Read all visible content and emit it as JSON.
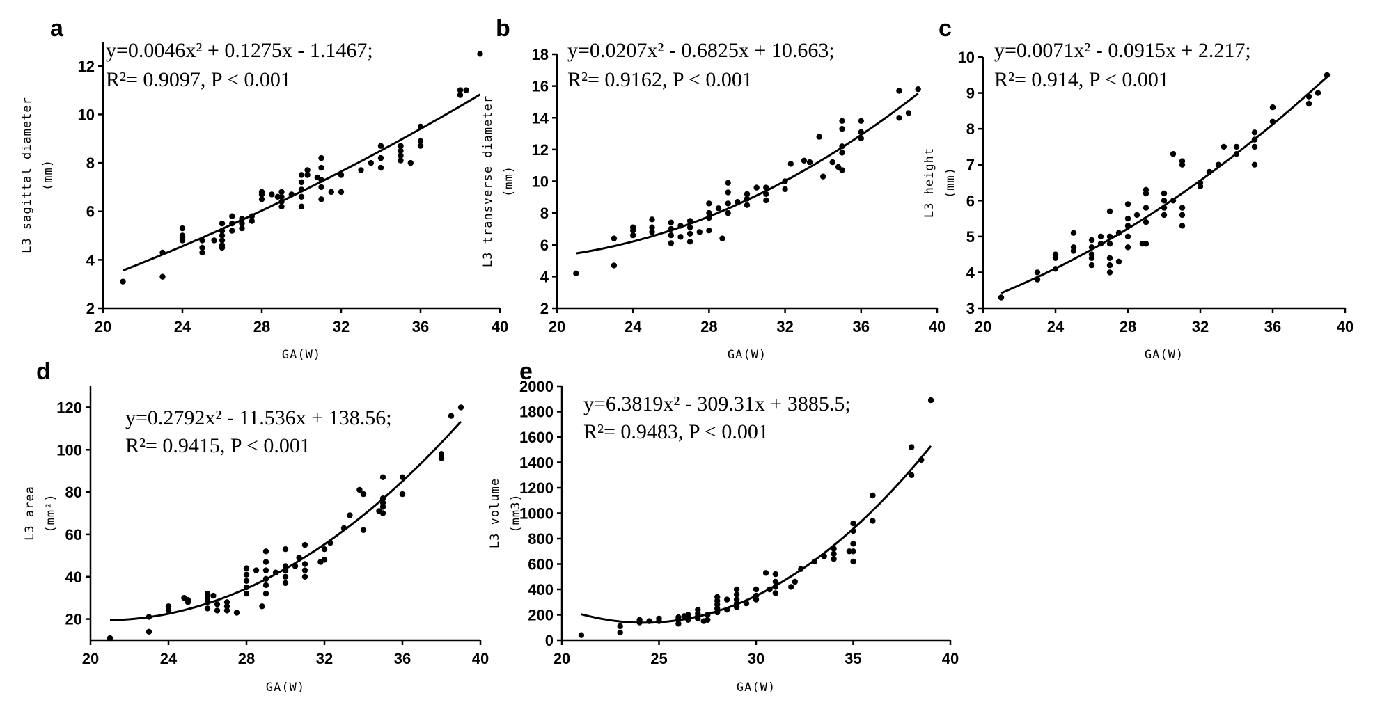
{
  "figure": {
    "panels": [
      "a",
      "b",
      "c",
      "d",
      "e"
    ]
  },
  "chart_data": [
    {
      "id": "a",
      "type": "scatter",
      "letter": "a",
      "xlabel": "GA(W)",
      "ylabel": "L3 sagittal diameter",
      "ylabel_unit": "(mm)",
      "xlim": [
        20,
        40
      ],
      "ylim": [
        2,
        13
      ],
      "xticks": [
        20,
        24,
        28,
        32,
        36,
        40
      ],
      "yticks": [
        2,
        4,
        6,
        8,
        10,
        12
      ],
      "equation": "y=0.0046x² + 0.1275x - 1.1467;",
      "stats": "R²= 0.9097,   P < 0.001",
      "fit": {
        "a": 0.0046,
        "b": 0.1275,
        "c": -1.1467,
        "x_from": 21,
        "x_to": 39
      },
      "points": [
        [
          21,
          3.1
        ],
        [
          23,
          4.3
        ],
        [
          23,
          3.3
        ],
        [
          24,
          5.3
        ],
        [
          24,
          5.0
        ],
        [
          24,
          4.9
        ],
        [
          24,
          4.8
        ],
        [
          25,
          4.8
        ],
        [
          25,
          4.5
        ],
        [
          25,
          4.3
        ],
        [
          25.6,
          4.8
        ],
        [
          26,
          5.5
        ],
        [
          26,
          5.2
        ],
        [
          26,
          5.0
        ],
        [
          26,
          4.8
        ],
        [
          26,
          4.6
        ],
        [
          26,
          4.5
        ],
        [
          26.5,
          5.8
        ],
        [
          26.5,
          5.5
        ],
        [
          26.5,
          5.2
        ],
        [
          27,
          5.7
        ],
        [
          27,
          5.5
        ],
        [
          27,
          5.3
        ],
        [
          27.5,
          5.8
        ],
        [
          27.5,
          5.6
        ],
        [
          28,
          6.8
        ],
        [
          28,
          6.7
        ],
        [
          28,
          6.5
        ],
        [
          28.5,
          6.7
        ],
        [
          28.8,
          6.6
        ],
        [
          29,
          6.8
        ],
        [
          29,
          6.6
        ],
        [
          29,
          6.4
        ],
        [
          29,
          6.2
        ],
        [
          29.5,
          6.7
        ],
        [
          30,
          7.5
        ],
        [
          30,
          7.2
        ],
        [
          30,
          6.9
        ],
        [
          30,
          6.6
        ],
        [
          30,
          6.2
        ],
        [
          30.3,
          7.7
        ],
        [
          30.3,
          7.5
        ],
        [
          30.8,
          7.4
        ],
        [
          31,
          8.2
        ],
        [
          31,
          7.8
        ],
        [
          31,
          7.3
        ],
        [
          31,
          7.0
        ],
        [
          31,
          6.5
        ],
        [
          31.5,
          6.8
        ],
        [
          32,
          7.5
        ],
        [
          32,
          6.8
        ],
        [
          33,
          7.7
        ],
        [
          33.5,
          8.0
        ],
        [
          34,
          8.7
        ],
        [
          34,
          8.2
        ],
        [
          34,
          7.8
        ],
        [
          35,
          8.7
        ],
        [
          35,
          8.5
        ],
        [
          35,
          8.3
        ],
        [
          35,
          8.1
        ],
        [
          35.5,
          8.0
        ],
        [
          36,
          9.5
        ],
        [
          36,
          8.9
        ],
        [
          36,
          8.7
        ],
        [
          38,
          11.0
        ],
        [
          38,
          10.8
        ],
        [
          38.3,
          11.0
        ],
        [
          39,
          12.5
        ]
      ]
    },
    {
      "id": "b",
      "type": "scatter",
      "letter": "b",
      "xlabel": "GA(W)",
      "ylabel": "L3 transverse diameter",
      "ylabel_unit": "(mm)",
      "xlim": [
        20,
        40
      ],
      "ylim": [
        2,
        18
      ],
      "xticks": [
        20,
        24,
        28,
        32,
        36,
        40
      ],
      "yticks": [
        2,
        4,
        6,
        8,
        10,
        12,
        14,
        16,
        18
      ],
      "equation": "y=0.0207x² - 0.6825x + 10.663;",
      "stats": "R²= 0.9162,   P < 0.001",
      "fit": {
        "a": 0.0207,
        "b": -0.6825,
        "c": 10.663,
        "x_from": 21,
        "x_to": 39
      },
      "points": [
        [
          21,
          4.2
        ],
        [
          23,
          6.4
        ],
        [
          23,
          4.7
        ],
        [
          24,
          7.1
        ],
        [
          24,
          6.9
        ],
        [
          24,
          6.6
        ],
        [
          25,
          7.6
        ],
        [
          25,
          7.1
        ],
        [
          25,
          6.8
        ],
        [
          26,
          7.4
        ],
        [
          26,
          7.0
        ],
        [
          26,
          6.6
        ],
        [
          26,
          6.1
        ],
        [
          26.5,
          7.2
        ],
        [
          26.5,
          6.5
        ],
        [
          27,
          7.5
        ],
        [
          27,
          7.1
        ],
        [
          27,
          6.7
        ],
        [
          27,
          6.2
        ],
        [
          27.5,
          6.8
        ],
        [
          28,
          8.6
        ],
        [
          28,
          8.0
        ],
        [
          28,
          7.7
        ],
        [
          28,
          6.9
        ],
        [
          28.5,
          8.3
        ],
        [
          28.7,
          6.4
        ],
        [
          29,
          9.9
        ],
        [
          29,
          9.3
        ],
        [
          29,
          8.6
        ],
        [
          29,
          8.0
        ],
        [
          29.5,
          8.7
        ],
        [
          30,
          9.2
        ],
        [
          30,
          8.9
        ],
        [
          30,
          8.5
        ],
        [
          30.5,
          9.6
        ],
        [
          31,
          9.6
        ],
        [
          31,
          9.2
        ],
        [
          31,
          8.8
        ],
        [
          32,
          10.0
        ],
        [
          32,
          9.5
        ],
        [
          32.3,
          11.1
        ],
        [
          33,
          11.3
        ],
        [
          33.3,
          11.2
        ],
        [
          33.8,
          12.8
        ],
        [
          34,
          10.3
        ],
        [
          34.5,
          11.2
        ],
        [
          34.8,
          10.9
        ],
        [
          35,
          13.8
        ],
        [
          35,
          13.3
        ],
        [
          35,
          12.2
        ],
        [
          35,
          11.8
        ],
        [
          35,
          10.7
        ],
        [
          36,
          13.8
        ],
        [
          36,
          13.1
        ],
        [
          36,
          12.7
        ],
        [
          38,
          15.7
        ],
        [
          38,
          14.0
        ],
        [
          38.5,
          14.3
        ],
        [
          39,
          15.8
        ]
      ]
    },
    {
      "id": "c",
      "type": "scatter",
      "letter": "c",
      "xlabel": "GA(W)",
      "ylabel": "L3 height",
      "ylabel_unit": "(mm)",
      "xlim": [
        20,
        40
      ],
      "ylim": [
        3,
        10
      ],
      "xticks": [
        20,
        24,
        28,
        32,
        36,
        40
      ],
      "yticks": [
        3,
        4,
        5,
        6,
        7,
        8,
        9,
        10
      ],
      "equation": "y=0.0071x² - 0.0915x + 2.217;",
      "stats": "R²= 0.914,   P < 0.001",
      "fit": {
        "a": 0.0071,
        "b": -0.0915,
        "c": 2.217,
        "x_from": 21,
        "x_to": 39
      },
      "points": [
        [
          21,
          3.3
        ],
        [
          23,
          4.0
        ],
        [
          23,
          3.8
        ],
        [
          24,
          4.4
        ],
        [
          24,
          4.1
        ],
        [
          24,
          4.5
        ],
        [
          25,
          5.1
        ],
        [
          25,
          4.7
        ],
        [
          25,
          4.6
        ],
        [
          26,
          4.9
        ],
        [
          26,
          4.7
        ],
        [
          26,
          4.5
        ],
        [
          26,
          4.4
        ],
        [
          26,
          4.2
        ],
        [
          26.5,
          4.8
        ],
        [
          26.5,
          5.0
        ],
        [
          27,
          5.7
        ],
        [
          27,
          5.0
        ],
        [
          27,
          4.8
        ],
        [
          27,
          4.4
        ],
        [
          27,
          4.2
        ],
        [
          27,
          4.0
        ],
        [
          27.5,
          4.3
        ],
        [
          27.5,
          5.1
        ],
        [
          28,
          5.9
        ],
        [
          28,
          5.5
        ],
        [
          28,
          5.3
        ],
        [
          28,
          5.0
        ],
        [
          28,
          4.7
        ],
        [
          28.5,
          5.6
        ],
        [
          28.8,
          4.8
        ],
        [
          29,
          6.3
        ],
        [
          29,
          6.2
        ],
        [
          29,
          5.8
        ],
        [
          29,
          5.4
        ],
        [
          29,
          4.8
        ],
        [
          30,
          6.2
        ],
        [
          30,
          6.0
        ],
        [
          30,
          5.8
        ],
        [
          30,
          5.6
        ],
        [
          30.5,
          7.3
        ],
        [
          30.5,
          6.0
        ],
        [
          31,
          7.1
        ],
        [
          31,
          7.0
        ],
        [
          31,
          5.8
        ],
        [
          31,
          5.6
        ],
        [
          31,
          5.3
        ],
        [
          32,
          6.4
        ],
        [
          32,
          6.5
        ],
        [
          32.5,
          6.8
        ],
        [
          33,
          7.0
        ],
        [
          33.3,
          7.5
        ],
        [
          34,
          7.5
        ],
        [
          34,
          7.3
        ],
        [
          35,
          7.9
        ],
        [
          35,
          7.7
        ],
        [
          35,
          7.5
        ],
        [
          35,
          7.0
        ],
        [
          36,
          8.6
        ],
        [
          36,
          8.2
        ],
        [
          38,
          8.9
        ],
        [
          38,
          8.7
        ],
        [
          38.5,
          9.0
        ],
        [
          39,
          9.5
        ]
      ]
    },
    {
      "id": "d",
      "type": "scatter",
      "letter": "d",
      "xlabel": "GA(W)",
      "ylabel": "L3 area",
      "ylabel_unit": "(mm²)",
      "xlim": [
        20,
        40
      ],
      "ylim": [
        10,
        130
      ],
      "xticks": [
        20,
        24,
        28,
        32,
        36,
        40
      ],
      "yticks": [
        20,
        40,
        60,
        80,
        100,
        120
      ],
      "equation": "y=0.2792x² - 11.536x + 138.56;",
      "stats": "R²= 0.9415,   P < 0.001",
      "fit": {
        "a": 0.2792,
        "b": -11.536,
        "c": 138.56,
        "x_from": 21,
        "x_to": 39
      },
      "points": [
        [
          21,
          11
        ],
        [
          23,
          21
        ],
        [
          23,
          14
        ],
        [
          24,
          26
        ],
        [
          24,
          24
        ],
        [
          24.8,
          30
        ],
        [
          25,
          29
        ],
        [
          25,
          28
        ],
        [
          26,
          32
        ],
        [
          26,
          30
        ],
        [
          26,
          28
        ],
        [
          26,
          25
        ],
        [
          26.3,
          31
        ],
        [
          26.5,
          27
        ],
        [
          26.5,
          24
        ],
        [
          27,
          28
        ],
        [
          27,
          26
        ],
        [
          27,
          24
        ],
        [
          27.5,
          23
        ],
        [
          28,
          44
        ],
        [
          28,
          41
        ],
        [
          28,
          38
        ],
        [
          28,
          35
        ],
        [
          28,
          32
        ],
        [
          28.5,
          43
        ],
        [
          28.8,
          26
        ],
        [
          29,
          52
        ],
        [
          29,
          47
        ],
        [
          29,
          43
        ],
        [
          29,
          39
        ],
        [
          29,
          36
        ],
        [
          29,
          32
        ],
        [
          29.5,
          42
        ],
        [
          30,
          53
        ],
        [
          30,
          45
        ],
        [
          30,
          43
        ],
        [
          30,
          40
        ],
        [
          30,
          37
        ],
        [
          30.5,
          45
        ],
        [
          30.7,
          49
        ],
        [
          31,
          55
        ],
        [
          31,
          46
        ],
        [
          31,
          43
        ],
        [
          31,
          40
        ],
        [
          31.8,
          47
        ],
        [
          32,
          48
        ],
        [
          32,
          53
        ],
        [
          32.3,
          56
        ],
        [
          33,
          63
        ],
        [
          33.3,
          69
        ],
        [
          33.8,
          81
        ],
        [
          34,
          79
        ],
        [
          34,
          62
        ],
        [
          34.8,
          71
        ],
        [
          35,
          87
        ],
        [
          35,
          77
        ],
        [
          35,
          75
        ],
        [
          35,
          73
        ],
        [
          35,
          70
        ],
        [
          36,
          87
        ],
        [
          36,
          79
        ],
        [
          38,
          98
        ],
        [
          38,
          96
        ],
        [
          38.5,
          116
        ],
        [
          39,
          120
        ]
      ]
    },
    {
      "id": "e",
      "type": "scatter",
      "letter": "e",
      "xlabel": "GA(W)",
      "ylabel": "L3 volume",
      "ylabel_unit": "(mm3)",
      "xlim": [
        20,
        40
      ],
      "ylim": [
        0,
        2000
      ],
      "xticks": [
        20,
        25,
        30,
        35,
        40
      ],
      "yticks": [
        0,
        200,
        400,
        600,
        800,
        1000,
        1200,
        1400,
        1600,
        1800,
        2000
      ],
      "equation": "y=6.3819x² - 309.31x + 3885.5;",
      "stats": "R²= 0.9483,   P < 0.001",
      "fit": {
        "a": 6.3819,
        "b": -309.31,
        "c": 3885.5,
        "x_from": 21,
        "x_to": 39
      },
      "points": [
        [
          21,
          40
        ],
        [
          23,
          110
        ],
        [
          23,
          60
        ],
        [
          24,
          160
        ],
        [
          24,
          140
        ],
        [
          24.5,
          150
        ],
        [
          25,
          170
        ],
        [
          25,
          150
        ],
        [
          26,
          180
        ],
        [
          26,
          160
        ],
        [
          26,
          130
        ],
        [
          26.3,
          190
        ],
        [
          26.5,
          200
        ],
        [
          26.5,
          160
        ],
        [
          27,
          240
        ],
        [
          27,
          210
        ],
        [
          27,
          190
        ],
        [
          27,
          170
        ],
        [
          27.3,
          150
        ],
        [
          27.5,
          160
        ],
        [
          27.5,
          200
        ],
        [
          28,
          340
        ],
        [
          28,
          310
        ],
        [
          28,
          280
        ],
        [
          28,
          250
        ],
        [
          28,
          220
        ],
        [
          28.5,
          320
        ],
        [
          28.5,
          240
        ],
        [
          29,
          400
        ],
        [
          29,
          360
        ],
        [
          29,
          320
        ],
        [
          29,
          290
        ],
        [
          29,
          260
        ],
        [
          29.5,
          290
        ],
        [
          30,
          400
        ],
        [
          30,
          350
        ],
        [
          30,
          320
        ],
        [
          30.5,
          530
        ],
        [
          30.7,
          400
        ],
        [
          31,
          520
        ],
        [
          31,
          460
        ],
        [
          31,
          420
        ],
        [
          31,
          370
        ],
        [
          31.8,
          420
        ],
        [
          32,
          460
        ],
        [
          32.3,
          560
        ],
        [
          33,
          620
        ],
        [
          33.5,
          660
        ],
        [
          34,
          720
        ],
        [
          34,
          680
        ],
        [
          34,
          640
        ],
        [
          34.8,
          700
        ],
        [
          35,
          920
        ],
        [
          35,
          860
        ],
        [
          35,
          760
        ],
        [
          35,
          700
        ],
        [
          35,
          620
        ],
        [
          36,
          1140
        ],
        [
          36,
          940
        ],
        [
          38,
          1520
        ],
        [
          38,
          1300
        ],
        [
          38.5,
          1420
        ],
        [
          39,
          1890
        ]
      ]
    }
  ]
}
